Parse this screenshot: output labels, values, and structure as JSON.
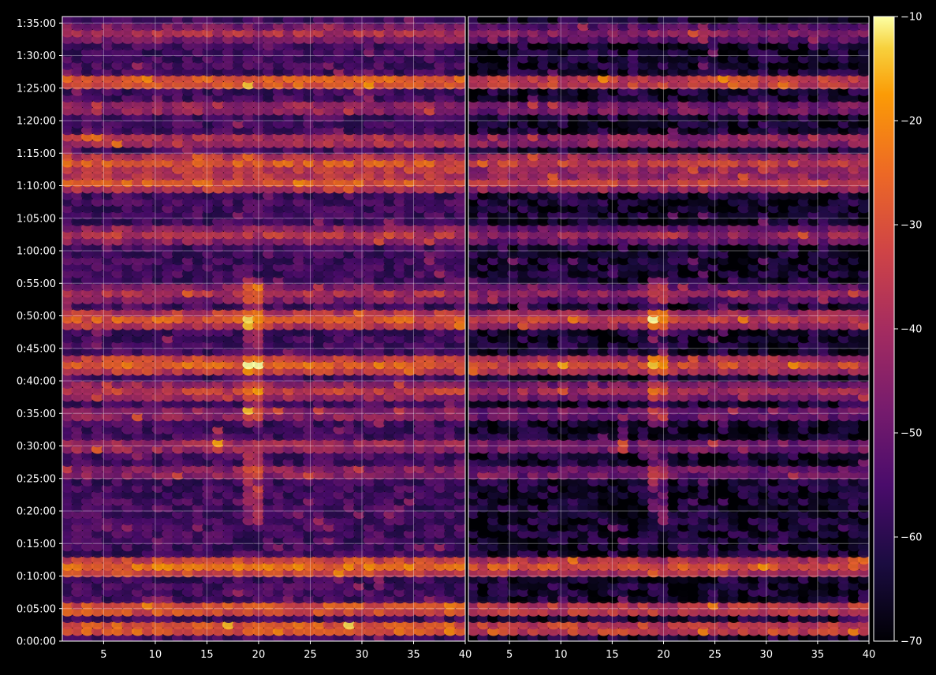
{
  "chart_data": {
    "type": "heatmap",
    "title": "",
    "xlabel": "",
    "ylabel": "",
    "panels": [
      {
        "name": "",
        "xlim": [
          1,
          40
        ],
        "xticks": [
          5,
          10,
          15,
          20,
          25,
          30,
          35,
          40
        ]
      },
      {
        "name": "",
        "xlim": [
          1,
          40
        ],
        "xticks": [
          5,
          10,
          15,
          20,
          25,
          30,
          35,
          40
        ]
      }
    ],
    "x": {
      "min": 1,
      "max": 40,
      "step": 1,
      "count": 40
    },
    "y": {
      "unit": "h:mm:ss",
      "min_seconds": 0,
      "max_seconds": 5760,
      "step_seconds": 60
    },
    "yticks": [
      "0:00:00",
      "0:05:00",
      "0:10:00",
      "0:15:00",
      "0:20:00",
      "0:25:00",
      "0:30:00",
      "0:35:00",
      "0:40:00",
      "0:45:00",
      "0:50:00",
      "0:55:00",
      "1:00:00",
      "1:05:00",
      "1:10:00",
      "1:15:00",
      "1:20:00",
      "1:25:00",
      "1:30:00",
      "1:35:00"
    ],
    "colorbar": {
      "colormap": "inferno",
      "vmin": -70,
      "vmax": -10,
      "ticks": [
        "-10",
        "-20",
        "-30",
        "-40",
        "-50",
        "-60",
        "-70"
      ]
    },
    "grid": true,
    "strong_rows_minutes": [
      {
        "t": 2,
        "level": -24
      },
      {
        "t": 5,
        "level": -26
      },
      {
        "t": 11.5,
        "level": -24
      },
      {
        "t": 26,
        "level": -40
      },
      {
        "t": 30,
        "level": -38
      },
      {
        "t": 35,
        "level": -40
      },
      {
        "t": 38.5,
        "level": -34
      },
      {
        "t": 42.5,
        "level": -26
      },
      {
        "t": 49.5,
        "level": -28
      },
      {
        "t": 53.5,
        "level": -38
      },
      {
        "t": 62.5,
        "level": -36
      },
      {
        "t": 70.5,
        "level": -28
      },
      {
        "t": 72,
        "level": -36
      },
      {
        "t": 73.5,
        "level": -28
      },
      {
        "t": 77,
        "level": -34
      },
      {
        "t": 82,
        "level": -38
      },
      {
        "t": 86,
        "level": -24
      },
      {
        "t": 93.5,
        "level": -38
      }
    ],
    "hot_columns": [
      {
        "x": 19.5,
        "t_from": 33,
        "t_to": 56,
        "level": -36
      },
      {
        "x": 16,
        "t_from": 29,
        "t_to": 33,
        "level": -40
      },
      {
        "x": 19.5,
        "t_from": 18,
        "t_to": 29,
        "level": -42
      }
    ],
    "right_panel_offset_db": -6
  },
  "icons": {
    "colorbar": "colorbar-gradient"
  }
}
